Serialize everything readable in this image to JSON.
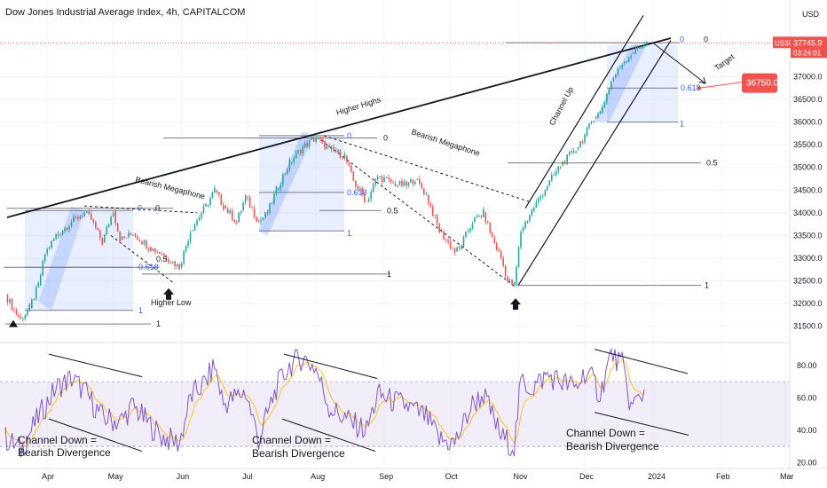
{
  "title": "Dow Jones Industrial Average Index, 4h, CAPITALCOM",
  "currency": "USD",
  "symbol_tag": "US30",
  "last_price": "37745.9",
  "countdown": "03:24:01",
  "target_price": "36750.0",
  "colors": {
    "up": "#26a69a",
    "down": "#ef5350",
    "price_tag": "#ef5350",
    "rsi_line": "#7e57c2",
    "rsi_ma": "#fbc02d",
    "fib_box": "#2962ff",
    "fib_text": "#2962ff"
  },
  "annotations": {
    "higher_highs": "Higher Highs",
    "bearish_megaphone_1": "Bearish Megaphone",
    "bearish_megaphone_2": "Bearish Megaphone",
    "channel_up": "Channel Up",
    "target": "Target",
    "higher_low": "Higher Low",
    "rsi_div_1": [
      "Channel Down =",
      "Bearish Divergence"
    ],
    "rsi_div_2": [
      "Channel Down =",
      "Bearish Divergence"
    ],
    "rsi_div_3": [
      "Channel Down =",
      "Bearish Divergence"
    ]
  },
  "fib_labels": {
    "f1": [
      "0",
      "0.5",
      "0.618",
      "1"
    ],
    "f2": [
      "0",
      "0.5",
      "1"
    ],
    "f3": [
      "0",
      "0.618",
      "0.5",
      "1"
    ],
    "f4": [
      "0",
      "0.5",
      "1"
    ],
    "f5": [
      "0",
      "0.618",
      "1"
    ],
    "f6": [
      "0",
      "0.5",
      "1"
    ]
  },
  "chart_data": [
    {
      "type": "line",
      "title": "Dow Jones Industrial Average Index, 4h, CAPITALCOM",
      "x_tick_labels": [
        "Apr",
        "May",
        "Jun",
        "Jul",
        "Aug",
        "Sep",
        "Oct",
        "Nov",
        "Dec",
        "2024",
        "Feb",
        "Mar"
      ],
      "y_tick_labels": [
        "37000.0",
        "36500.0",
        "36000.0",
        "35500.0",
        "35000.0",
        "34500.0",
        "34000.0",
        "33500.0",
        "33000.0",
        "32500.0",
        "32000.0",
        "31500.0"
      ],
      "ylim": [
        31200,
        38300
      ],
      "series": [
        {
          "name": "",
          "points": [
            [
              "2023-03-13",
              32200
            ],
            [
              "2023-03-17",
              31850
            ],
            [
              "2023-03-20",
              31650
            ],
            [
              "2023-03-24",
              31900
            ],
            [
              "2023-03-28",
              32400
            ],
            [
              "2023-03-31",
              33100
            ],
            [
              "2023-04-05",
              33500
            ],
            [
              "2023-04-12",
              33800
            ],
            [
              "2023-04-18",
              34000
            ],
            [
              "2023-04-21",
              33850
            ],
            [
              "2023-04-26",
              33350
            ],
            [
              "2023-05-01",
              34050
            ],
            [
              "2023-05-04",
              33400
            ],
            [
              "2023-05-10",
              33550
            ],
            [
              "2023-05-17",
              33250
            ],
            [
              "2023-05-23",
              33100
            ],
            [
              "2023-05-31",
              32800
            ],
            [
              "2023-06-05",
              33600
            ],
            [
              "2023-06-12",
              34150
            ],
            [
              "2023-06-16",
              34500
            ],
            [
              "2023-06-20",
              34150
            ],
            [
              "2023-06-26",
              33800
            ],
            [
              "2023-06-30",
              34350
            ],
            [
              "2023-07-06",
              33800
            ],
            [
              "2023-07-10",
              34000
            ],
            [
              "2023-07-14",
              34500
            ],
            [
              "2023-07-20",
              35100
            ],
            [
              "2023-07-26",
              35450
            ],
            [
              "2023-08-01",
              35650
            ],
            [
              "2023-08-07",
              35400
            ],
            [
              "2023-08-14",
              35250
            ],
            [
              "2023-08-18",
              34700
            ],
            [
              "2023-08-24",
              34250
            ],
            [
              "2023-08-29",
              34800
            ],
            [
              "2023-09-05",
              34650
            ],
            [
              "2023-09-11",
              34600
            ],
            [
              "2023-09-15",
              34750
            ],
            [
              "2023-09-20",
              34400
            ],
            [
              "2023-09-26",
              33600
            ],
            [
              "2023-10-03",
              33150
            ],
            [
              "2023-10-05",
              33200
            ],
            [
              "2023-10-11",
              33800
            ],
            [
              "2023-10-16",
              34000
            ],
            [
              "2023-10-20",
              33450
            ],
            [
              "2023-10-24",
              33000
            ],
            [
              "2023-10-27",
              32500
            ],
            [
              "2023-10-30",
              32400
            ],
            [
              "2023-11-02",
              33600
            ],
            [
              "2023-11-07",
              34050
            ],
            [
              "2023-11-14",
              34600
            ],
            [
              "2023-11-20",
              35050
            ],
            [
              "2023-11-27",
              35400
            ],
            [
              "2023-12-01",
              35700
            ],
            [
              "2023-12-05",
              36100
            ],
            [
              "2023-12-08",
              36200
            ],
            [
              "2023-12-13",
              36900
            ],
            [
              "2023-12-18",
              37300
            ],
            [
              "2023-12-22",
              37500
            ],
            [
              "2023-12-27",
              37700
            ],
            [
              "2023-12-29",
              37745.9
            ]
          ]
        }
      ],
      "target": {
        "x": "2024-01-22",
        "y": 36750
      }
    },
    {
      "type": "line",
      "title": "RSI",
      "y_tick_labels": [
        "80.00",
        "60.00",
        "40.00",
        "20.00"
      ],
      "ylim": [
        18,
        92
      ],
      "band": [
        30,
        70
      ],
      "series": [
        {
          "name": "",
          "points": [
            [
              "2023-03-13",
              35
            ],
            [
              "2023-03-20",
              28
            ],
            [
              "2023-03-28",
              48
            ],
            [
              "2023-04-05",
              66
            ],
            [
              "2023-04-12",
              72
            ],
            [
              "2023-04-18",
              64
            ],
            [
              "2023-04-26",
              48
            ],
            [
              "2023-05-04",
              45
            ],
            [
              "2023-05-10",
              55
            ],
            [
              "2023-05-17",
              44
            ],
            [
              "2023-05-23",
              36
            ],
            [
              "2023-05-31",
              32
            ],
            [
              "2023-06-05",
              60
            ],
            [
              "2023-06-12",
              70
            ],
            [
              "2023-06-16",
              80
            ],
            [
              "2023-06-20",
              56
            ],
            [
              "2023-06-30",
              64
            ],
            [
              "2023-07-06",
              34
            ],
            [
              "2023-07-14",
              66
            ],
            [
              "2023-07-20",
              80
            ],
            [
              "2023-07-26",
              85
            ],
            [
              "2023-08-01",
              78
            ],
            [
              "2023-08-07",
              54
            ],
            [
              "2023-08-18",
              44
            ],
            [
              "2023-08-24",
              40
            ],
            [
              "2023-08-29",
              62
            ],
            [
              "2023-09-05",
              58
            ],
            [
              "2023-09-11",
              55
            ],
            [
              "2023-09-20",
              48
            ],
            [
              "2023-09-26",
              34
            ],
            [
              "2023-10-03",
              32
            ],
            [
              "2023-10-11",
              56
            ],
            [
              "2023-10-16",
              62
            ],
            [
              "2023-10-24",
              36
            ],
            [
              "2023-10-30",
              30
            ],
            [
              "2023-11-02",
              70
            ],
            [
              "2023-11-07",
              66
            ],
            [
              "2023-11-14",
              74
            ],
            [
              "2023-11-20",
              70
            ],
            [
              "2023-11-27",
              66
            ],
            [
              "2023-12-01",
              76
            ],
            [
              "2023-12-05",
              70
            ],
            [
              "2023-12-08",
              62
            ],
            [
              "2023-12-13",
              88
            ],
            [
              "2023-12-18",
              80
            ],
            [
              "2023-12-22",
              54
            ],
            [
              "2023-12-27",
              62
            ],
            [
              "2023-12-29",
              66
            ]
          ]
        }
      ]
    }
  ]
}
